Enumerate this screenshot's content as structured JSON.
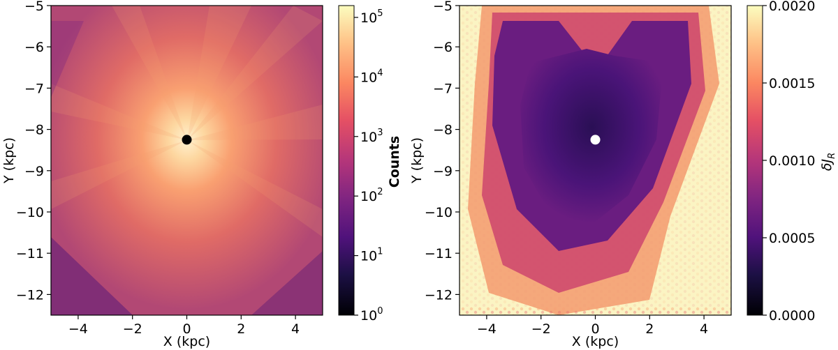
{
  "chart_data": [
    {
      "type": "heatmap",
      "xlabel": "X (kpc)",
      "ylabel": "Y (kpc)",
      "xlim": [
        -5,
        5
      ],
      "ylim": [
        -12.5,
        -5
      ],
      "xticks": [
        -4,
        -2,
        0,
        2,
        4
      ],
      "yticks": [
        -12,
        -11,
        -10,
        -9,
        -8,
        -7,
        -6,
        -5
      ],
      "colorbar": {
        "label": "Counts",
        "scale": "log",
        "range": [
          1,
          158000
        ],
        "ticks": [
          {
            "exp": 0,
            "value": 1
          },
          {
            "exp": 1,
            "value": 10
          },
          {
            "exp": 2,
            "value": 100
          },
          {
            "exp": 3,
            "value": 1000
          },
          {
            "exp": 4,
            "value": 10000
          },
          {
            "exp": 5,
            "value": 100000
          }
        ],
        "colormap": "magma"
      },
      "marker": {
        "x": 0,
        "y": -8.25,
        "color": "#000000"
      },
      "description_values": {
        "center_peak_counts": 100000,
        "edge_counts": 30
      }
    },
    {
      "type": "heatmap",
      "xlabel": "X (kpc)",
      "ylabel": "Y (kpc)",
      "xlim": [
        -5,
        5
      ],
      "ylim": [
        -12.5,
        -5
      ],
      "xticks": [
        -4,
        -2,
        0,
        2,
        4
      ],
      "yticks": [
        -12,
        -11,
        -10,
        -9,
        -8,
        -7,
        -6,
        -5
      ],
      "colorbar": {
        "label": "δJ",
        "label_sub": "R",
        "scale": "linear",
        "range": [
          0,
          0.002
        ],
        "ticks": [
          "0.0000",
          "0.0005",
          "0.0010",
          "0.0015",
          "0.0020"
        ],
        "colormap": "magma"
      },
      "marker": {
        "x": 0,
        "y": -8.25,
        "color": "#ffffff"
      }
    }
  ]
}
